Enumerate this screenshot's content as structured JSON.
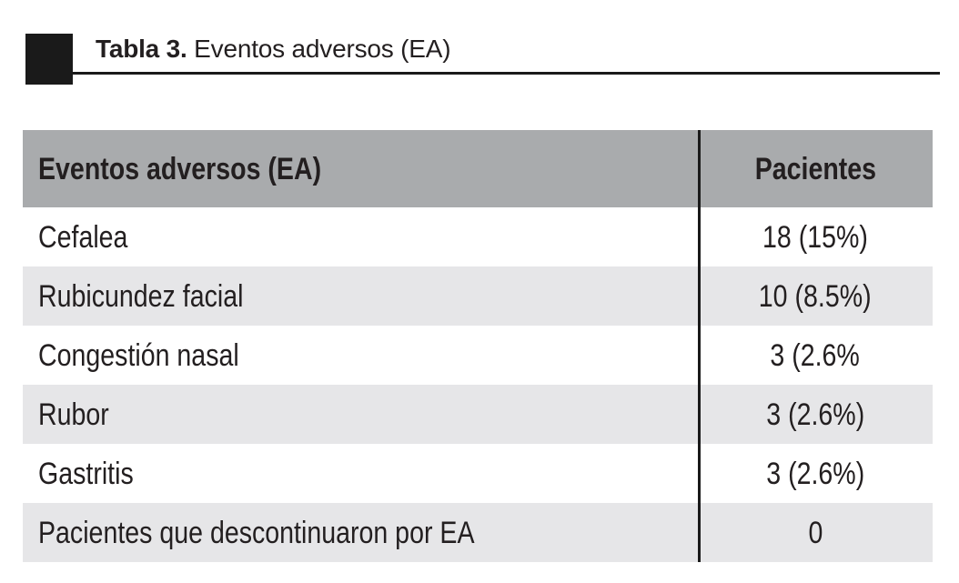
{
  "title": {
    "label_bold": "Tabla 3.",
    "label_rest": " Eventos adversos (EA)"
  },
  "table": {
    "headers": {
      "event": "Eventos adversos (EA)",
      "patients": "Pacientes"
    },
    "rows": [
      {
        "event": "Cefalea",
        "patients": "18 (15%)"
      },
      {
        "event": "Rubicundez facial",
        "patients": "10 (8.5%)"
      },
      {
        "event": "Congestión nasal",
        "patients": "3 (2.6%"
      },
      {
        "event": "Rubor",
        "patients": "3 (2.6%)"
      },
      {
        "event": "Gastritis",
        "patients": "3 (2.6%)"
      },
      {
        "event": "Pacientes que descontinuaron por EA",
        "patients": "0"
      }
    ]
  },
  "chart_data": {
    "type": "table",
    "title": "Tabla 3. Eventos adversos (EA)",
    "columns": [
      "Eventos adversos (EA)",
      "Pacientes"
    ],
    "rows": [
      [
        "Cefalea",
        "18 (15%)"
      ],
      [
        "Rubicundez facial",
        "10 (8.5%)"
      ],
      [
        "Congestión nasal",
        "3 (2.6%"
      ],
      [
        "Rubor",
        "3 (2.6%)"
      ],
      [
        "Gastritis",
        "3 (2.6%)"
      ],
      [
        "Pacientes que descontinuaron por EA",
        "0"
      ]
    ]
  },
  "colors": {
    "header_bg": "#a9abad",
    "row_alt_bg": "#e6e6e8",
    "text": "#231f20",
    "accent_black": "#1a1a1a"
  }
}
